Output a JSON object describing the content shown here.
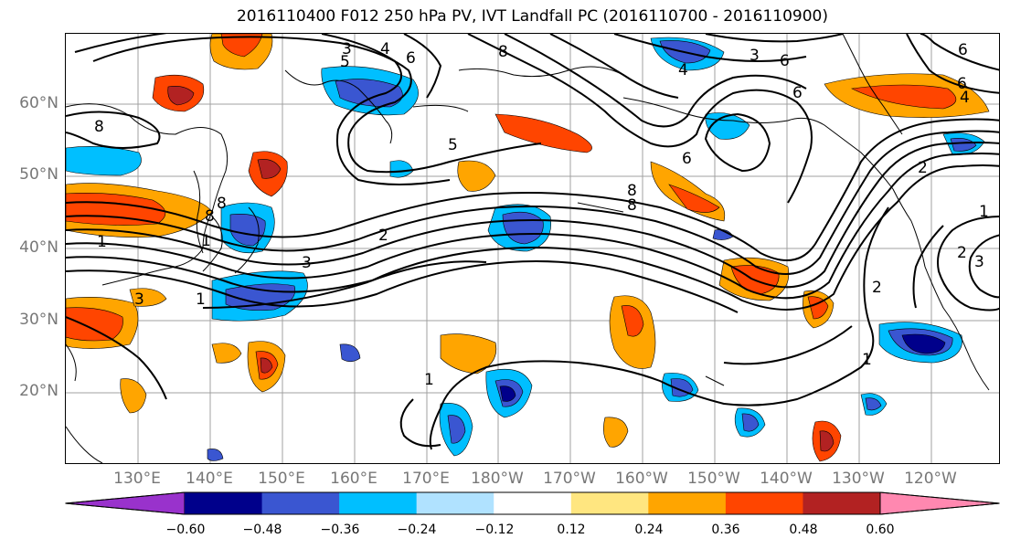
{
  "title": "2016110400 F012 250 hPa PV, IVT Landfall PC (2016110700 - 2016110900)",
  "map": {
    "lat_labels": [
      "60°N",
      "50°N",
      "40°N",
      "30°N",
      "20°N"
    ],
    "lon_labels": [
      "130°E",
      "140°E",
      "150°E",
      "160°E",
      "170°E",
      "180°W",
      "170°W",
      "160°W",
      "150°W",
      "140°W",
      "130°W",
      "120°W"
    ],
    "contour_labels": [
      "3",
      "4",
      "5",
      "6",
      "8",
      "8",
      "3",
      "4",
      "6",
      "6",
      "6",
      "4",
      "6",
      "8",
      "8",
      "5",
      "6",
      "8",
      "8",
      "2",
      "1",
      "3",
      "2",
      "2",
      "3",
      "1",
      "1",
      "2",
      "3",
      "1",
      "1",
      "1"
    ]
  },
  "colorbar": {
    "tick_labels": [
      "−0.60",
      "−0.48",
      "−0.36",
      "−0.24",
      "−0.12",
      "0.12",
      "0.24",
      "0.36",
      "0.48",
      "0.60"
    ],
    "colors": [
      "#9932cc",
      "#00008b",
      "#3a56d1",
      "#00bfff",
      "#b0e2ff",
      "#ffffff",
      "#ffe680",
      "#ffa500",
      "#ff4500",
      "#b22222",
      "#ff88b0"
    ]
  }
}
